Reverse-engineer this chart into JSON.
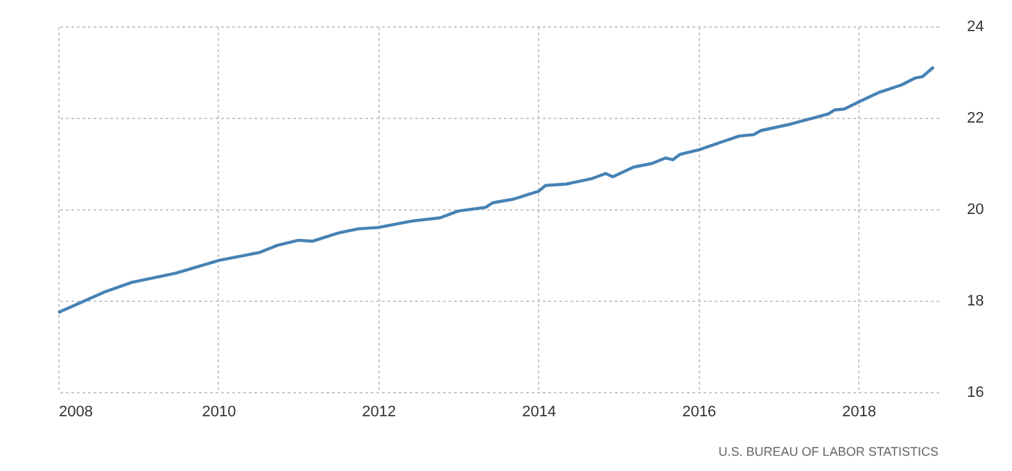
{
  "chart_data": {
    "type": "line",
    "x": [
      2008.0,
      2008.58,
      2008.92,
      2009.47,
      2010.01,
      2010.51,
      2010.74,
      2011.0,
      2011.18,
      2011.5,
      2011.75,
      2012.0,
      2012.42,
      2012.77,
      2013.0,
      2013.34,
      2013.43,
      2013.69,
      2013.85,
      2014.0,
      2014.09,
      2014.35,
      2014.67,
      2014.84,
      2014.93,
      2015.19,
      2015.42,
      2015.59,
      2015.68,
      2015.77,
      2016.01,
      2016.29,
      2016.51,
      2016.69,
      2016.78,
      2017.15,
      2017.62,
      2017.7,
      2017.82,
      2018.02,
      2018.25,
      2018.54,
      2018.71,
      2018.8,
      2018.94
    ],
    "series": [
      {
        "color": "#4682b4",
        "values": [
          17.74,
          18.19,
          18.4,
          18.6,
          18.88,
          19.05,
          19.21,
          19.32,
          19.3,
          19.48,
          19.57,
          19.6,
          19.74,
          19.81,
          19.96,
          20.04,
          20.14,
          20.22,
          20.31,
          20.39,
          20.52,
          20.55,
          20.67,
          20.78,
          20.71,
          20.92,
          21.0,
          21.12,
          21.08,
          21.2,
          21.3,
          21.47,
          21.6,
          21.63,
          21.72,
          21.86,
          22.08,
          22.17,
          22.19,
          22.36,
          22.55,
          22.72,
          22.87,
          22.9,
          23.11
        ]
      }
    ],
    "xlim": [
      2008,
      2019
    ],
    "xticks": [
      2008,
      2010,
      2012,
      2014,
      2016,
      2018
    ],
    "ylim": [
      16,
      24
    ],
    "yticks": [
      16,
      18,
      20,
      22,
      24
    ],
    "grid": true,
    "marker": "none",
    "line_style": "solid",
    "annotations": [
      "U.S. BUREAU OF LABOR STATISTICS"
    ]
  }
}
